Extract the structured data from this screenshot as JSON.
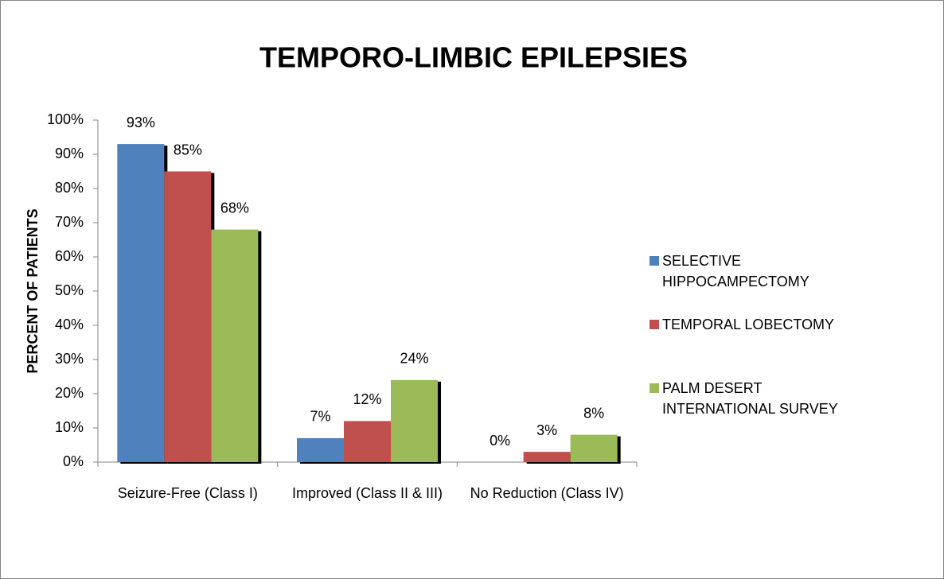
{
  "chart_data": {
    "type": "bar",
    "title": "TEMPORO-LIMBIC EPILEPSIES",
    "y_label": "PERCENT OF PATIENTS",
    "categories": [
      "Seizure-Free (Class I)",
      "Improved (Class II & III)",
      "No Reduction (Class IV)"
    ],
    "series": [
      {
        "name": "SELECTIVE HIPPOCAMPECTOMY",
        "color": "#4f81bd",
        "values": [
          93,
          7,
          0
        ],
        "value_labels": [
          "93%",
          "7%",
          "0%"
        ]
      },
      {
        "name": "TEMPORAL LOBECTOMY",
        "color": "#c0504d",
        "values": [
          85,
          12,
          3
        ],
        "value_labels": [
          "85%",
          "12%",
          "3%"
        ]
      },
      {
        "name": "PALM DESERT INTERNATIONAL SURVEY",
        "color": "#9bbb59",
        "values": [
          68,
          24,
          8
        ],
        "value_labels": [
          "68%",
          "24%",
          "8%"
        ]
      }
    ],
    "ylim": [
      0,
      100
    ],
    "yticks": [
      {
        "value": 0,
        "label": "0%"
      },
      {
        "value": 10,
        "label": "10%"
      },
      {
        "value": 20,
        "label": "20%"
      },
      {
        "value": 30,
        "label": "30%"
      },
      {
        "value": 40,
        "label": "40%"
      },
      {
        "value": 50,
        "label": "50%"
      },
      {
        "value": 60,
        "label": "60%"
      },
      {
        "value": 70,
        "label": "70%"
      },
      {
        "value": 80,
        "label": "80%"
      },
      {
        "value": 90,
        "label": "90%"
      },
      {
        "value": 100,
        "label": "100%"
      }
    ],
    "legend": "right"
  }
}
